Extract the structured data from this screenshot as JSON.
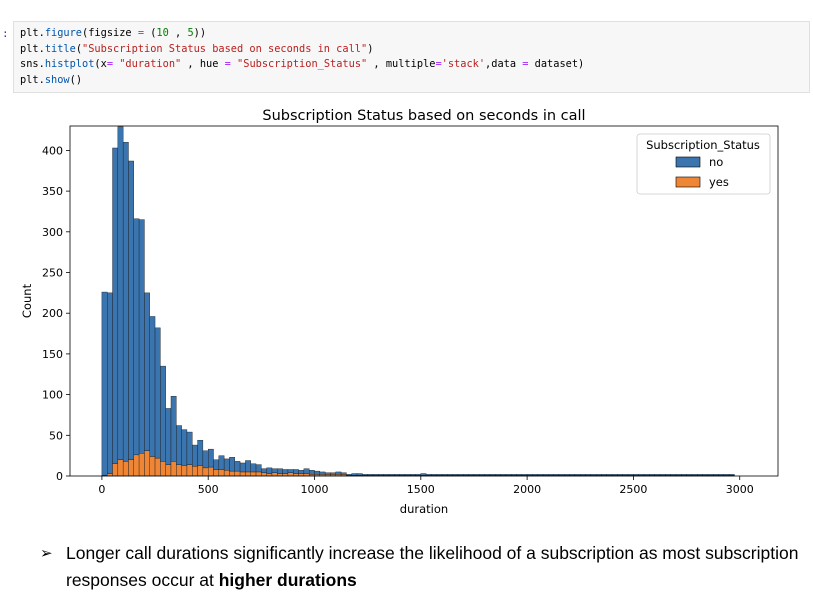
{
  "notebook": {
    "prompt": ":",
    "code_lines": [
      [
        {
          "t": "plain",
          "v": "plt."
        },
        {
          "t": "fn",
          "v": "figure"
        },
        {
          "t": "plain",
          "v": "(figsize "
        },
        {
          "t": "op",
          "v": "="
        },
        {
          "t": "plain",
          "v": " ("
        },
        {
          "t": "num",
          "v": "10"
        },
        {
          "t": "plain",
          "v": " , "
        },
        {
          "t": "num",
          "v": "5"
        },
        {
          "t": "plain",
          "v": "))"
        }
      ],
      [
        {
          "t": "plain",
          "v": "plt."
        },
        {
          "t": "fn",
          "v": "title"
        },
        {
          "t": "plain",
          "v": "("
        },
        {
          "t": "str",
          "v": "\"Subscription Status based on seconds in call\""
        },
        {
          "t": "plain",
          "v": ")"
        }
      ],
      [
        {
          "t": "plain",
          "v": "sns."
        },
        {
          "t": "fn",
          "v": "histplot"
        },
        {
          "t": "plain",
          "v": "(x"
        },
        {
          "t": "op",
          "v": "="
        },
        {
          "t": "plain",
          "v": " "
        },
        {
          "t": "str",
          "v": "\"duration\""
        },
        {
          "t": "plain",
          "v": " , hue "
        },
        {
          "t": "op",
          "v": "="
        },
        {
          "t": "plain",
          "v": " "
        },
        {
          "t": "str",
          "v": "\"Subscription_Status\""
        },
        {
          "t": "plain",
          "v": " , multiple"
        },
        {
          "t": "op",
          "v": "="
        },
        {
          "t": "str",
          "v": "'stack'"
        },
        {
          "t": "plain",
          "v": ",data "
        },
        {
          "t": "op",
          "v": "="
        },
        {
          "t": "plain",
          "v": " dataset)"
        }
      ],
      [
        {
          "t": "plain",
          "v": "plt."
        },
        {
          "t": "fn",
          "v": "show"
        },
        {
          "t": "plain",
          "v": "()"
        }
      ]
    ],
    "colors": {
      "fn": "#0055aa",
      "str": "#ba2121",
      "num": "#008000",
      "op": "#aa22ff",
      "plain": "#000000"
    }
  },
  "chart_data": {
    "type": "bar",
    "multiple": "stack",
    "title": "Subscription Status based on seconds in call",
    "xlabel": "duration",
    "ylabel": "Count",
    "xlim": [
      -150,
      3180
    ],
    "ylim": [
      0,
      430
    ],
    "xticks": [
      0,
      500,
      1000,
      1500,
      2000,
      2500,
      3000
    ],
    "yticks": [
      0,
      50,
      100,
      150,
      200,
      250,
      300,
      350,
      400
    ],
    "bin_width": 25,
    "bin_start": 0,
    "legend": {
      "title": "Subscription_Status",
      "position": "top-right"
    },
    "series": [
      {
        "name": "no",
        "color": "#3b75af",
        "values": [
          225,
          222,
          388,
          409,
          392,
          367,
          290,
          287,
          194,
          172,
          160,
          117,
          69,
          80,
          48,
          44,
          40,
          26,
          31,
          21,
          22,
          12,
          17,
          14,
          17,
          12,
          11,
          14,
          10,
          9,
          5,
          7,
          5,
          6,
          5,
          4,
          5,
          4,
          6,
          5,
          4,
          3,
          2,
          2,
          3,
          2,
          1,
          2,
          2,
          1,
          1,
          1,
          1,
          1,
          1,
          1,
          1,
          1,
          1,
          1,
          2,
          1,
          1,
          1,
          1,
          1,
          1,
          1,
          1,
          1,
          1,
          1,
          1,
          1,
          1,
          1,
          1,
          1,
          1,
          1,
          1,
          1,
          1,
          1,
          1,
          1,
          1,
          1,
          1,
          1,
          1,
          1,
          1,
          1,
          1,
          1,
          1,
          1,
          1,
          1,
          1,
          1,
          1,
          1,
          1,
          1,
          1,
          1,
          1,
          1,
          1,
          1,
          1,
          1,
          1,
          1,
          1,
          1,
          1
        ]
      },
      {
        "name": "yes",
        "color": "#ef8636",
        "values": [
          1,
          3,
          15,
          20,
          18,
          20,
          26,
          28,
          31,
          24,
          22,
          18,
          14,
          18,
          14,
          13,
          14,
          12,
          13,
          10,
          11,
          8,
          8,
          7,
          6,
          6,
          5,
          5,
          5,
          5,
          4,
          3,
          4,
          3,
          3,
          4,
          3,
          3,
          3,
          2,
          2,
          2,
          2,
          2,
          2,
          2,
          1,
          1,
          1,
          1,
          1,
          1,
          1,
          1,
          1,
          1,
          1,
          1,
          1,
          1,
          1,
          1,
          1,
          1,
          1,
          1,
          1,
          1,
          1,
          1,
          1,
          1,
          1,
          1,
          1,
          1,
          1,
          1,
          1,
          1,
          1,
          1,
          1,
          1,
          1,
          1,
          1,
          1,
          1,
          1,
          1,
          1,
          1,
          1,
          1,
          1,
          1,
          1,
          1,
          1,
          1,
          1,
          1,
          1,
          1,
          1,
          1,
          1,
          1,
          1,
          1,
          1,
          1,
          1,
          1,
          1,
          1,
          1,
          1
        ]
      }
    ]
  },
  "bullet": {
    "arrow": "➢",
    "text": "Longer call durations significantly increase the likelihood of a subscription as most subscription responses occur at ",
    "bold": "higher durations"
  }
}
